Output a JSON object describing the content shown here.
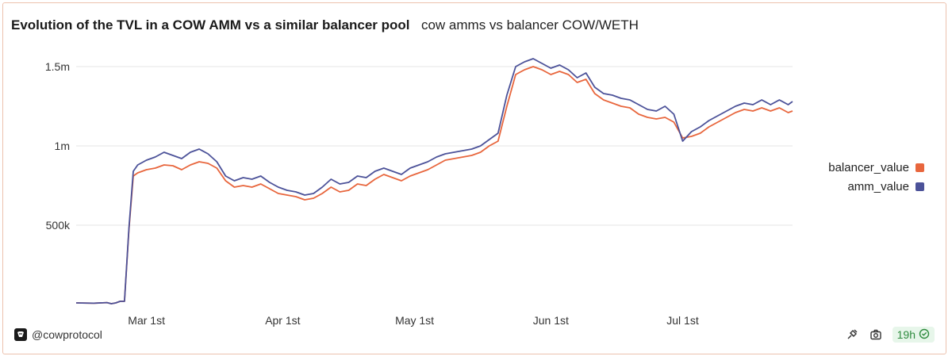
{
  "header": {
    "title": "Evolution of the TVL in a COW AMM vs a similar balancer pool",
    "subtitle": "cow amms vs balancer COW/WETH"
  },
  "footer": {
    "handle": "@cowprotocol",
    "age_badge": "19h",
    "icons": [
      "cow-logo-icon",
      "share-icon",
      "camera-icon",
      "check-circle-icon"
    ]
  },
  "colors": {
    "balancer_value": "#e8663d",
    "amm_value": "#4c5299",
    "grid": "#e6e6e6",
    "card_border": "#ecc2ae"
  },
  "chart_data": {
    "type": "line",
    "x_start": "2024-02-14",
    "x_end": "2024-07-26",
    "x_tick_labels": [
      "Mar 1st",
      "Apr 1st",
      "May 1st",
      "Jun 1st",
      "Jul 1st"
    ],
    "x_ticks": [
      "2024-03-01",
      "2024-04-01",
      "2024-05-01",
      "2024-06-01",
      "2024-07-01"
    ],
    "y_ticks": [
      500000,
      1000000,
      1500000
    ],
    "y_tick_labels": [
      "500k",
      "1m",
      "1.5m"
    ],
    "ylim": [
      0,
      1600000
    ],
    "grid": true,
    "legend_position": "right",
    "series": [
      {
        "name": "balancer_value",
        "points": [
          [
            "2024-02-14",
            10000
          ],
          [
            "2024-02-18",
            8000
          ],
          [
            "2024-02-21",
            12000
          ],
          [
            "2024-02-22",
            5000
          ],
          [
            "2024-02-23",
            10000
          ],
          [
            "2024-02-24",
            20000
          ],
          [
            "2024-02-25",
            20000
          ],
          [
            "2024-02-26",
            470000
          ],
          [
            "2024-02-27",
            810000
          ],
          [
            "2024-02-28",
            830000
          ],
          [
            "2024-03-01",
            850000
          ],
          [
            "2024-03-03",
            860000
          ],
          [
            "2024-03-05",
            880000
          ],
          [
            "2024-03-07",
            875000
          ],
          [
            "2024-03-09",
            850000
          ],
          [
            "2024-03-11",
            880000
          ],
          [
            "2024-03-13",
            900000
          ],
          [
            "2024-03-15",
            890000
          ],
          [
            "2024-03-17",
            860000
          ],
          [
            "2024-03-19",
            780000
          ],
          [
            "2024-03-21",
            740000
          ],
          [
            "2024-03-23",
            750000
          ],
          [
            "2024-03-25",
            740000
          ],
          [
            "2024-03-27",
            760000
          ],
          [
            "2024-03-29",
            730000
          ],
          [
            "2024-03-31",
            700000
          ],
          [
            "2024-04-02",
            690000
          ],
          [
            "2024-04-04",
            680000
          ],
          [
            "2024-04-06",
            660000
          ],
          [
            "2024-04-08",
            670000
          ],
          [
            "2024-04-10",
            700000
          ],
          [
            "2024-04-12",
            740000
          ],
          [
            "2024-04-14",
            710000
          ],
          [
            "2024-04-16",
            720000
          ],
          [
            "2024-04-18",
            760000
          ],
          [
            "2024-04-20",
            750000
          ],
          [
            "2024-04-22",
            790000
          ],
          [
            "2024-04-24",
            820000
          ],
          [
            "2024-04-26",
            800000
          ],
          [
            "2024-04-28",
            780000
          ],
          [
            "2024-04-30",
            810000
          ],
          [
            "2024-05-02",
            830000
          ],
          [
            "2024-05-04",
            850000
          ],
          [
            "2024-05-06",
            880000
          ],
          [
            "2024-05-08",
            910000
          ],
          [
            "2024-05-10",
            920000
          ],
          [
            "2024-05-12",
            930000
          ],
          [
            "2024-05-14",
            940000
          ],
          [
            "2024-05-16",
            960000
          ],
          [
            "2024-05-18",
            1000000
          ],
          [
            "2024-05-20",
            1030000
          ],
          [
            "2024-05-22",
            1250000
          ],
          [
            "2024-05-24",
            1450000
          ],
          [
            "2024-05-26",
            1480000
          ],
          [
            "2024-05-28",
            1500000
          ],
          [
            "2024-05-30",
            1480000
          ],
          [
            "2024-06-01",
            1450000
          ],
          [
            "2024-06-03",
            1470000
          ],
          [
            "2024-06-05",
            1450000
          ],
          [
            "2024-06-07",
            1400000
          ],
          [
            "2024-06-09",
            1420000
          ],
          [
            "2024-06-11",
            1330000
          ],
          [
            "2024-06-13",
            1290000
          ],
          [
            "2024-06-15",
            1270000
          ],
          [
            "2024-06-17",
            1250000
          ],
          [
            "2024-06-19",
            1240000
          ],
          [
            "2024-06-21",
            1200000
          ],
          [
            "2024-06-23",
            1180000
          ],
          [
            "2024-06-25",
            1170000
          ],
          [
            "2024-06-27",
            1180000
          ],
          [
            "2024-06-29",
            1150000
          ],
          [
            "2024-07-01",
            1050000
          ],
          [
            "2024-07-03",
            1060000
          ],
          [
            "2024-07-05",
            1080000
          ],
          [
            "2024-07-07",
            1120000
          ],
          [
            "2024-07-09",
            1150000
          ],
          [
            "2024-07-11",
            1180000
          ],
          [
            "2024-07-13",
            1210000
          ],
          [
            "2024-07-15",
            1230000
          ],
          [
            "2024-07-17",
            1220000
          ],
          [
            "2024-07-19",
            1240000
          ],
          [
            "2024-07-21",
            1220000
          ],
          [
            "2024-07-23",
            1240000
          ],
          [
            "2024-07-25",
            1210000
          ],
          [
            "2024-07-26",
            1220000
          ]
        ]
      },
      {
        "name": "amm_value",
        "points": [
          [
            "2024-02-14",
            10000
          ],
          [
            "2024-02-18",
            8000
          ],
          [
            "2024-02-21",
            12000
          ],
          [
            "2024-02-22",
            5000
          ],
          [
            "2024-02-23",
            10000
          ],
          [
            "2024-02-24",
            20000
          ],
          [
            "2024-02-25",
            20000
          ],
          [
            "2024-02-26",
            480000
          ],
          [
            "2024-02-27",
            840000
          ],
          [
            "2024-02-28",
            880000
          ],
          [
            "2024-03-01",
            910000
          ],
          [
            "2024-03-03",
            930000
          ],
          [
            "2024-03-05",
            960000
          ],
          [
            "2024-03-07",
            940000
          ],
          [
            "2024-03-09",
            920000
          ],
          [
            "2024-03-11",
            960000
          ],
          [
            "2024-03-13",
            980000
          ],
          [
            "2024-03-15",
            950000
          ],
          [
            "2024-03-17",
            900000
          ],
          [
            "2024-03-19",
            810000
          ],
          [
            "2024-03-21",
            780000
          ],
          [
            "2024-03-23",
            800000
          ],
          [
            "2024-03-25",
            790000
          ],
          [
            "2024-03-27",
            810000
          ],
          [
            "2024-03-29",
            770000
          ],
          [
            "2024-03-31",
            740000
          ],
          [
            "2024-04-02",
            720000
          ],
          [
            "2024-04-04",
            710000
          ],
          [
            "2024-04-06",
            690000
          ],
          [
            "2024-04-08",
            700000
          ],
          [
            "2024-04-10",
            740000
          ],
          [
            "2024-04-12",
            790000
          ],
          [
            "2024-04-14",
            760000
          ],
          [
            "2024-04-16",
            770000
          ],
          [
            "2024-04-18",
            810000
          ],
          [
            "2024-04-20",
            800000
          ],
          [
            "2024-04-22",
            840000
          ],
          [
            "2024-04-24",
            860000
          ],
          [
            "2024-04-26",
            840000
          ],
          [
            "2024-04-28",
            820000
          ],
          [
            "2024-04-30",
            860000
          ],
          [
            "2024-05-02",
            880000
          ],
          [
            "2024-05-04",
            900000
          ],
          [
            "2024-05-06",
            930000
          ],
          [
            "2024-05-08",
            950000
          ],
          [
            "2024-05-10",
            960000
          ],
          [
            "2024-05-12",
            970000
          ],
          [
            "2024-05-14",
            980000
          ],
          [
            "2024-05-16",
            1000000
          ],
          [
            "2024-05-18",
            1040000
          ],
          [
            "2024-05-20",
            1080000
          ],
          [
            "2024-05-22",
            1320000
          ],
          [
            "2024-05-24",
            1500000
          ],
          [
            "2024-05-26",
            1530000
          ],
          [
            "2024-05-28",
            1550000
          ],
          [
            "2024-05-30",
            1520000
          ],
          [
            "2024-06-01",
            1490000
          ],
          [
            "2024-06-03",
            1510000
          ],
          [
            "2024-06-05",
            1480000
          ],
          [
            "2024-06-07",
            1430000
          ],
          [
            "2024-06-09",
            1460000
          ],
          [
            "2024-06-11",
            1370000
          ],
          [
            "2024-06-13",
            1330000
          ],
          [
            "2024-06-15",
            1320000
          ],
          [
            "2024-06-17",
            1300000
          ],
          [
            "2024-06-19",
            1290000
          ],
          [
            "2024-06-21",
            1260000
          ],
          [
            "2024-06-23",
            1230000
          ],
          [
            "2024-06-25",
            1220000
          ],
          [
            "2024-06-27",
            1250000
          ],
          [
            "2024-06-29",
            1200000
          ],
          [
            "2024-07-01",
            1030000
          ],
          [
            "2024-07-03",
            1090000
          ],
          [
            "2024-07-05",
            1120000
          ],
          [
            "2024-07-07",
            1160000
          ],
          [
            "2024-07-09",
            1190000
          ],
          [
            "2024-07-11",
            1220000
          ],
          [
            "2024-07-13",
            1250000
          ],
          [
            "2024-07-15",
            1270000
          ],
          [
            "2024-07-17",
            1260000
          ],
          [
            "2024-07-19",
            1290000
          ],
          [
            "2024-07-21",
            1260000
          ],
          [
            "2024-07-23",
            1290000
          ],
          [
            "2024-07-25",
            1260000
          ],
          [
            "2024-07-26",
            1280000
          ]
        ]
      }
    ]
  }
}
